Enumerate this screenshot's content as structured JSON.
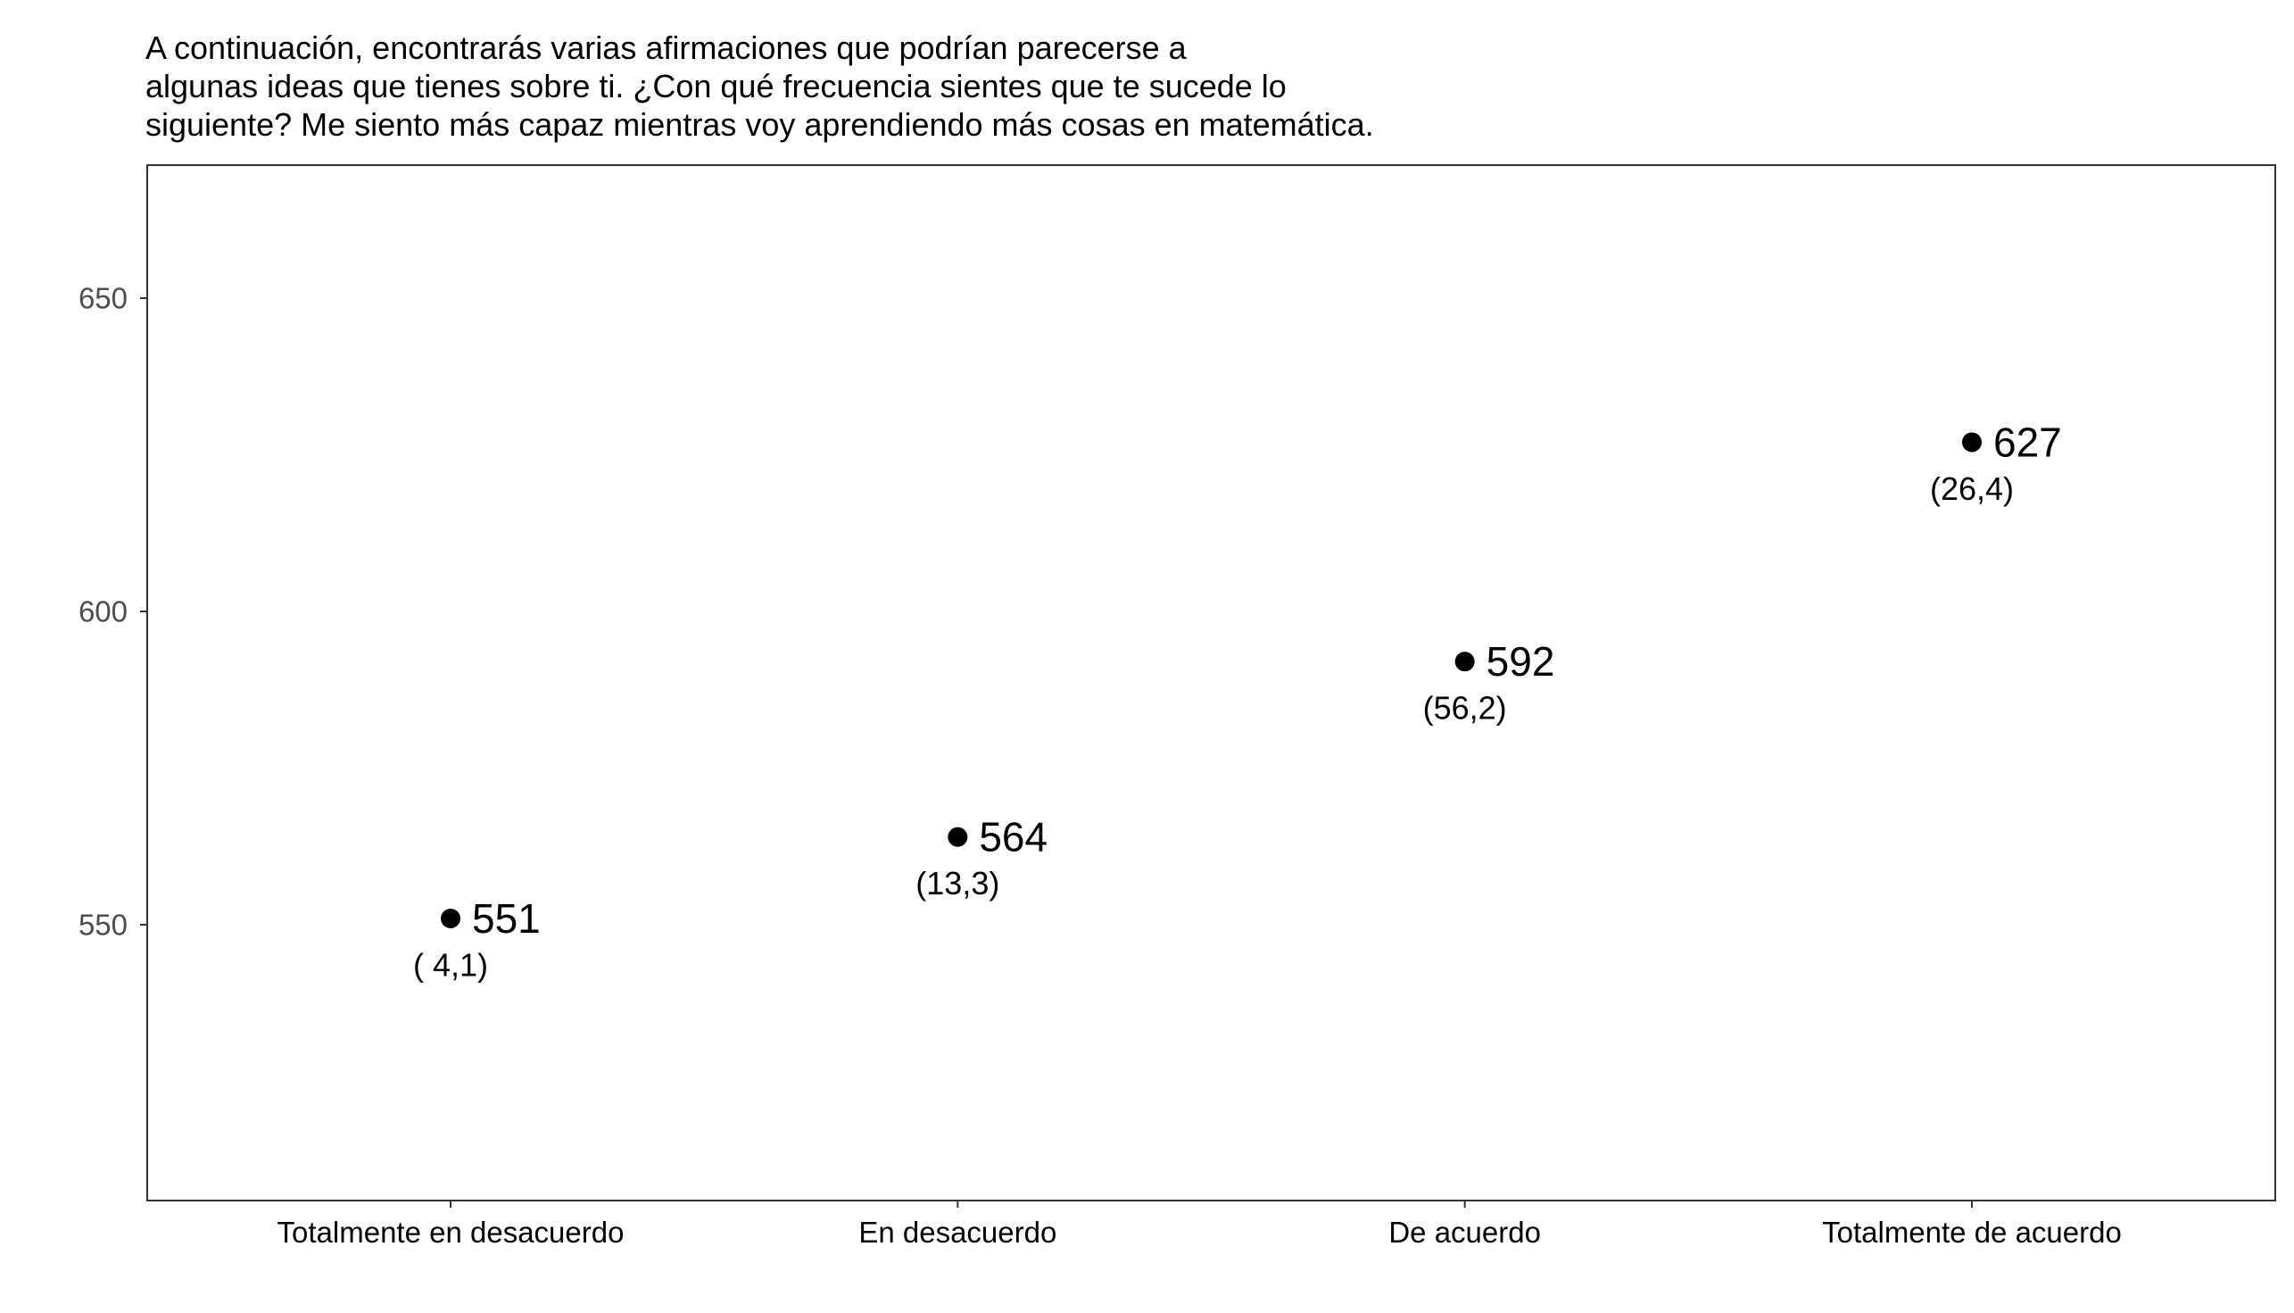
{
  "chart_data": {
    "type": "scatter",
    "title_lines": [
      "A continuación, encontrarás varias afirmaciones que podrían parecerse a",
      "algunas ideas que tienes sobre ti. ¿Con qué frecuencia sientes que te sucede lo",
      "siguiente? Me siento más capaz mientras voy aprendiendo más cosas en matemática."
    ],
    "xlabel": "",
    "ylabel": "",
    "categories": [
      "Totalmente en desacuerdo",
      "En desacuerdo",
      "De acuerdo",
      "Totalmente de acuerdo"
    ],
    "values": [
      551,
      564,
      592,
      627
    ],
    "value_labels": [
      "551",
      "564",
      "592",
      "627"
    ],
    "secondary_labels": [
      "( 4,1)",
      "(13,3)",
      "(56,2)",
      "(26,4)"
    ],
    "ylim": [
      506,
      672
    ],
    "yticks": [
      550,
      600,
      650
    ],
    "ytick_labels": [
      "550",
      "600",
      "650"
    ],
    "grid": false,
    "legend": "none",
    "point_color": "#000000",
    "panel_border_color": "#333333"
  }
}
